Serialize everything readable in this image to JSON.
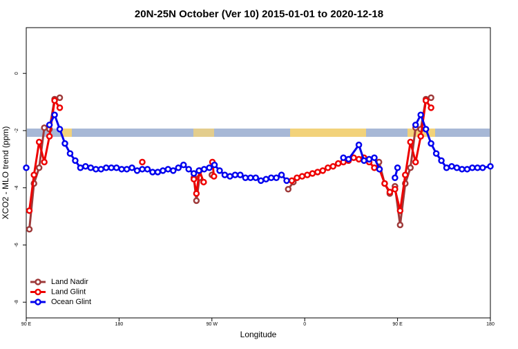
{
  "chart_data": {
    "type": "line",
    "title": "20N-25N October (Ver 10)   2015-01-01 to 2020-12-18",
    "x_label": "Longitude",
    "y_label": "XCO2 - MLO trend (ppm)",
    "xlim": [
      90,
      540
    ],
    "ylim": [
      -8.55,
      1.6
    ],
    "xticks": [
      {
        "value": 90,
        "label": "90 E"
      },
      {
        "value": 180,
        "label": "180"
      },
      {
        "value": 270,
        "label": "90 W"
      },
      {
        "value": 360,
        "label": "0"
      },
      {
        "value": 450,
        "label": "90 E"
      },
      {
        "value": 540,
        "label": "180"
      }
    ],
    "yticks": [
      0,
      -2,
      -4,
      -6,
      -8
    ],
    "legend": "bottom-left",
    "series": [
      {
        "name": "Land Nadir",
        "color": "#9e3a3a",
        "x": [
          93,
          97.5,
          102.5,
          107.5,
          112.5,
          117.5,
          122.5,
          null,
          252.5,
          255,
          258,
          null,
          270,
          null,
          344,
          349,
          null,
          432,
          437.5,
          442.5,
          447.5,
          452.5,
          457.5,
          462.5,
          467.5,
          472.5,
          477.5,
          482.5
        ],
        "values": [
          -5.45,
          -3.85,
          -3.3,
          -1.9,
          -1.95,
          -0.9,
          -0.85,
          null,
          -3.65,
          -4.45,
          -3.65,
          null,
          -3.55,
          null,
          -4.05,
          -3.8,
          null,
          -3.1,
          -3.85,
          -4.2,
          -3.95,
          -5.3,
          -3.85,
          -3.3,
          -1.9,
          -1.95,
          -0.9,
          -0.85
        ]
      },
      {
        "name": "Land Glint",
        "color": "#ee0000",
        "x": [
          93,
          97.5,
          102.5,
          107.5,
          112.5,
          117.5,
          122.5,
          null,
          202.5,
          null,
          252.5,
          255,
          258,
          262,
          null,
          270.5,
          272,
          null,
          347.5,
          352.5,
          357.5,
          362.5,
          367.5,
          372.5,
          377.5,
          382.5,
          387.5,
          392.5,
          397.5,
          402.5,
          407.5,
          412.5,
          417.5,
          422.5,
          427.5,
          432.5,
          437.5,
          442.5,
          447.5,
          452.5,
          457.5,
          462.5,
          467.5,
          472.5,
          477.5,
          482.5
        ],
        "values": [
          -4.8,
          -3.55,
          -2.4,
          -3.1,
          -2.2,
          -0.95,
          -1.2,
          null,
          -3.1,
          null,
          -3.7,
          -4.2,
          -3.4,
          -3.8,
          null,
          -3.1,
          -3.6,
          null,
          -3.75,
          -3.65,
          -3.6,
          -3.55,
          -3.5,
          -3.45,
          -3.4,
          -3.3,
          -3.25,
          -3.15,
          -3.1,
          -3.05,
          -2.95,
          -3.0,
          -2.95,
          -3.1,
          -3.3,
          -3.35,
          -3.85,
          -4.15,
          -4.05,
          -4.8,
          -3.55,
          -2.4,
          -3.1,
          -2.2,
          -0.95,
          -1.2
        ]
      },
      {
        "name": "Ocean Glint",
        "color": "#0000ee",
        "x": [
          90,
          null,
          112.5,
          117.5,
          122.5,
          127.5,
          132.5,
          137.5,
          142.5,
          147.5,
          152.5,
          157.5,
          162.5,
          167.5,
          172.5,
          177.5,
          182.5,
          187.5,
          192.5,
          197.5,
          202.5,
          207.5,
          212.5,
          217.5,
          222.5,
          227.5,
          232.5,
          237.5,
          242.5,
          247.5,
          252.5,
          257.5,
          262.5,
          267.5,
          272.5,
          277.5,
          282.5,
          287.5,
          292.5,
          297.5,
          302.5,
          307.5,
          312.5,
          317.5,
          322.5,
          327.5,
          332.5,
          337.5,
          342.5,
          null,
          397.5,
          402.5,
          412.5,
          417.5,
          422.5,
          427.5,
          432.5,
          null,
          447.5,
          450,
          null,
          467.5,
          472.5,
          477.5,
          482.5,
          487.5,
          492.5,
          497.5,
          502.5,
          507.5,
          512.5,
          517.5,
          522.5,
          527.5,
          532.5,
          540
        ],
        "values": [
          -3.3,
          null,
          -1.8,
          -1.45,
          -1.95,
          -2.45,
          -2.8,
          -3.05,
          -3.3,
          -3.25,
          -3.3,
          -3.35,
          -3.35,
          -3.3,
          -3.3,
          -3.3,
          -3.35,
          -3.35,
          -3.3,
          -3.4,
          -3.35,
          -3.35,
          -3.45,
          -3.45,
          -3.4,
          -3.35,
          -3.4,
          -3.3,
          -3.2,
          -3.35,
          -3.5,
          -3.4,
          -3.35,
          -3.3,
          -3.2,
          -3.4,
          -3.55,
          -3.6,
          -3.55,
          -3.55,
          -3.65,
          -3.65,
          -3.65,
          -3.75,
          -3.7,
          -3.65,
          -3.65,
          -3.55,
          -3.75,
          null,
          -2.95,
          -3.0,
          -2.5,
          -3.05,
          -3.0,
          -2.95,
          -3.35,
          null,
          -3.65,
          -3.3,
          null,
          -1.8,
          -1.45,
          -1.95,
          -2.45,
          -2.8,
          -3.05,
          -3.3,
          -3.25,
          -3.3,
          -3.35,
          -3.35,
          -3.3,
          -3.3,
          -3.3,
          -3.25
        ]
      }
    ]
  }
}
